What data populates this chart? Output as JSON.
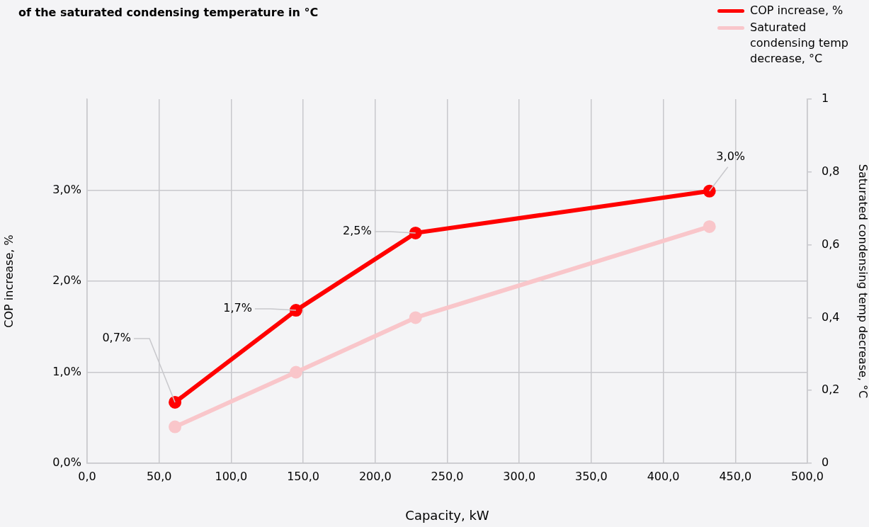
{
  "chart_data": {
    "type": "line",
    "title": "of the saturated condensing temperature in °C",
    "xlabel": "Capacity, kW",
    "ylabel": "COP increase, %",
    "y2label": "Saturated condensing temp decrease, °C",
    "xlim": [
      0,
      500
    ],
    "xticks": [
      {
        "value": 0,
        "label": "0,0"
      },
      {
        "value": 50,
        "label": "50,0"
      },
      {
        "value": 100,
        "label": "100,0"
      },
      {
        "value": 150,
        "label": "150,0"
      },
      {
        "value": 200,
        "label": "200,0"
      },
      {
        "value": 250,
        "label": "250,0"
      },
      {
        "value": 300,
        "label": "300,0"
      },
      {
        "value": 350,
        "label": "350,0"
      },
      {
        "value": 400,
        "label": "400,0"
      },
      {
        "value": 450,
        "label": "450,0"
      },
      {
        "value": 500,
        "label": "500,0"
      }
    ],
    "ylim": [
      0,
      4
    ],
    "yticks": [
      {
        "value": 0,
        "label": "0,0%"
      },
      {
        "value": 1,
        "label": "1,0%"
      },
      {
        "value": 2,
        "label": "2,0%"
      },
      {
        "value": 3,
        "label": "3,0%"
      }
    ],
    "y2lim": [
      0,
      1
    ],
    "y2ticks": [
      {
        "value": 0,
        "label": "0"
      },
      {
        "value": 0.2,
        "label": "0,2"
      },
      {
        "value": 0.4,
        "label": "0,4"
      },
      {
        "value": 0.6,
        "label": "0,6"
      },
      {
        "value": 0.8,
        "label": "0,8"
      },
      {
        "value": 1,
        "label": "1"
      }
    ],
    "grid": true,
    "legend": "top right",
    "marker": "circle",
    "line_style": "solid",
    "series": [
      {
        "name": "COP increase, %",
        "color": "#ff0000",
        "x": [
          61,
          145,
          228,
          432
        ],
        "values": [
          0.67,
          1.68,
          2.53,
          2.99
        ],
        "value_labels": [
          "0,7%",
          "1,7%",
          "2,5%",
          "3,0%"
        ]
      },
      {
        "name": "Saturated condensing temp decrease, °C",
        "color": "#f9c6ca",
        "axis": "y2",
        "x": [
          61,
          145,
          228,
          432
        ],
        "values": [
          0.1,
          0.25,
          0.4,
          0.65
        ]
      }
    ]
  }
}
